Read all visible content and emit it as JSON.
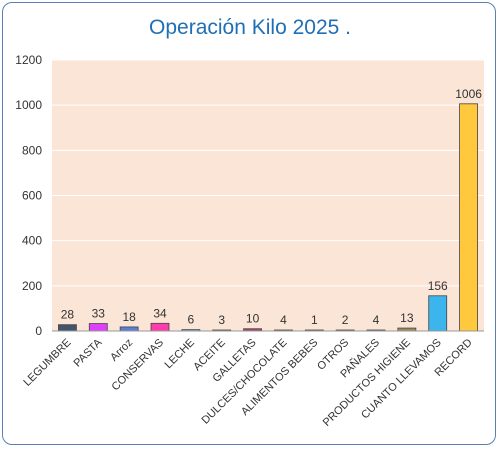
{
  "chart_data": {
    "type": "bar",
    "title": "Operación Kilo 2025 .",
    "xlabel": "",
    "ylabel": "",
    "ylim": [
      0,
      1200
    ],
    "yticks": [
      0,
      200,
      400,
      600,
      800,
      1000,
      1200
    ],
    "grid": true,
    "legend": "none",
    "plot_background": "#fbe5d6",
    "categories": [
      "LEGUMBRE",
      "PASTA",
      "Arroz",
      "CONSERVAS",
      "LECHE",
      "ACEITE",
      "GALLETAS",
      "DULCES/CHOCOLATE",
      "ALIMENTOS BEBES",
      "OTROS",
      "PAÑALES",
      "PRODUCTOS HIGIENE",
      "CUANTO LLEVAMOS",
      "RECORD"
    ],
    "values": [
      28,
      33,
      18,
      34,
      6,
      3,
      10,
      4,
      1,
      2,
      4,
      13,
      156,
      1006
    ],
    "colors": [
      "#44546a",
      "#e040fb",
      "#5b7fd4",
      "#ff3cac",
      "#7f9fd9",
      "#bbbbbb",
      "#a9436c",
      "#e6b8a2",
      "#cccccc",
      "#cccccc",
      "#b8cce4",
      "#9c8a5c",
      "#3cb4ec",
      "#ffc83d"
    ]
  }
}
